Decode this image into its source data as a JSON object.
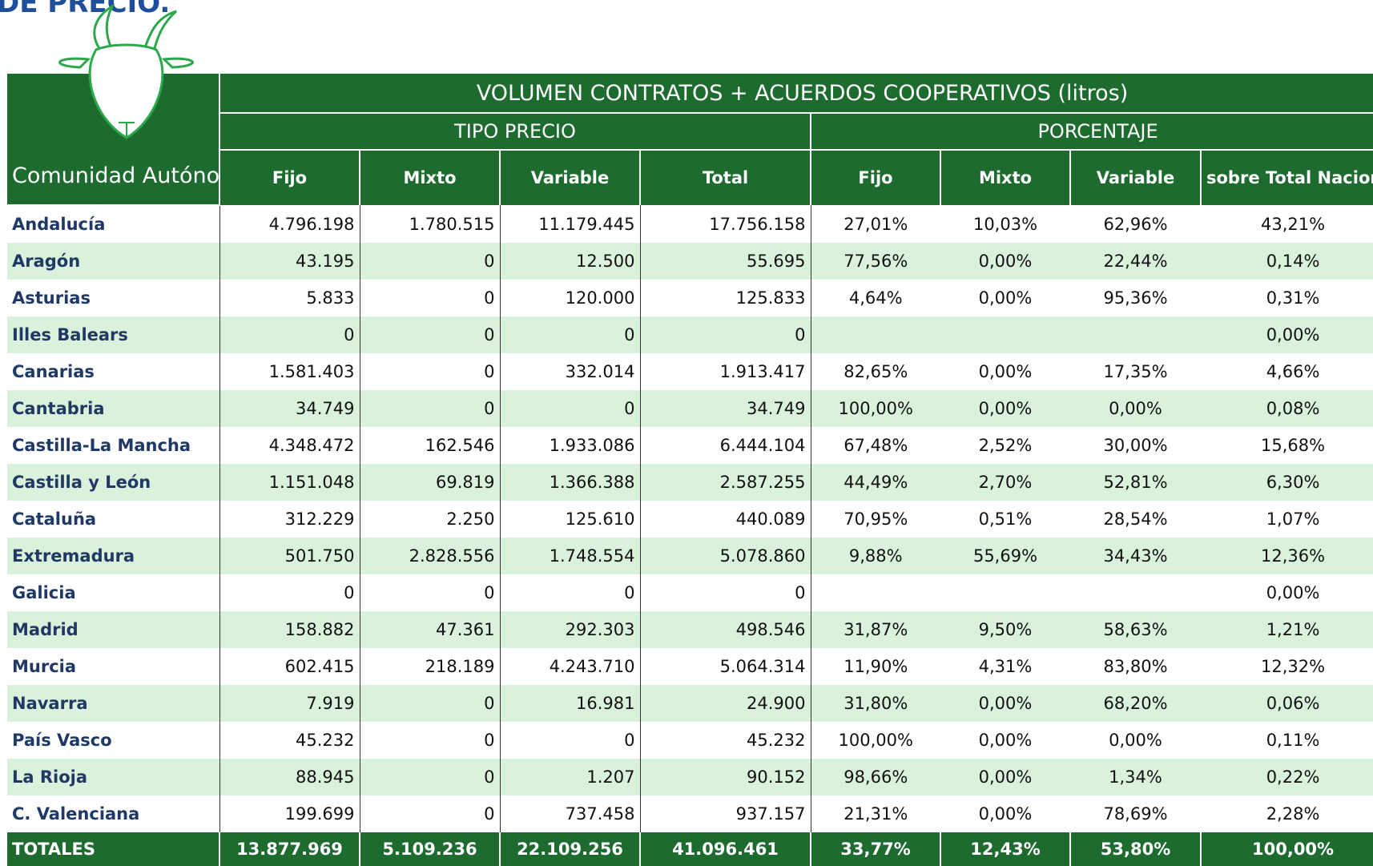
{
  "header": {
    "title_fragment": "DE PRECIO."
  },
  "table": {
    "group_title": "VOLUMEN CONTRATOS + ACUERDOS COOPERATIVOS (litros)",
    "subgroups": [
      "TIPO PRECIO",
      "PORCENTAJE"
    ],
    "columns": [
      "Comunidad Autónoma",
      "Fijo",
      "Mixto",
      "Variable",
      "Total",
      "Fijo",
      "Mixto",
      "Variable",
      "sobre Total Nacion"
    ],
    "rows": [
      [
        "Andalucía",
        "4.796.198",
        "1.780.515",
        "11.179.445",
        "17.756.158",
        "27,01%",
        "10,03%",
        "62,96%",
        "43,21%"
      ],
      [
        "Aragón",
        "43.195",
        "0",
        "12.500",
        "55.695",
        "77,56%",
        "0,00%",
        "22,44%",
        "0,14%"
      ],
      [
        "Asturias",
        "5.833",
        "0",
        "120.000",
        "125.833",
        "4,64%",
        "0,00%",
        "95,36%",
        "0,31%"
      ],
      [
        "Illes Balears",
        "0",
        "0",
        "0",
        "0",
        null,
        null,
        null,
        "0,00%"
      ],
      [
        "Canarias",
        "1.581.403",
        "0",
        "332.014",
        "1.913.417",
        "82,65%",
        "0,00%",
        "17,35%",
        "4,66%"
      ],
      [
        "Cantabria",
        "34.749",
        "0",
        "0",
        "34.749",
        "100,00%",
        "0,00%",
        "0,00%",
        "0,08%"
      ],
      [
        "Castilla-La Mancha",
        "4.348.472",
        "162.546",
        "1.933.086",
        "6.444.104",
        "67,48%",
        "2,52%",
        "30,00%",
        "15,68%"
      ],
      [
        "Castilla y León",
        "1.151.048",
        "69.819",
        "1.366.388",
        "2.587.255",
        "44,49%",
        "2,70%",
        "52,81%",
        "6,30%"
      ],
      [
        "Cataluña",
        "312.229",
        "2.250",
        "125.610",
        "440.089",
        "70,95%",
        "0,51%",
        "28,54%",
        "1,07%"
      ],
      [
        "Extremadura",
        "501.750",
        "2.828.556",
        "1.748.554",
        "5.078.860",
        "9,88%",
        "55,69%",
        "34,43%",
        "12,36%"
      ],
      [
        "Galicia",
        "0",
        "0",
        "0",
        "0",
        null,
        null,
        null,
        "0,00%"
      ],
      [
        "Madrid",
        "158.882",
        "47.361",
        "292.303",
        "498.546",
        "31,87%",
        "9,50%",
        "58,63%",
        "1,21%"
      ],
      [
        "Murcia",
        "602.415",
        "218.189",
        "4.243.710",
        "5.064.314",
        "11,90%",
        "4,31%",
        "83,80%",
        "12,32%"
      ],
      [
        "Navarra",
        "7.919",
        "0",
        "16.981",
        "24.900",
        "31,80%",
        "0,00%",
        "68,20%",
        "0,06%"
      ],
      [
        "País Vasco",
        "45.232",
        "0",
        "0",
        "45.232",
        "100,00%",
        "0,00%",
        "0,00%",
        "0,11%"
      ],
      [
        "La Rioja",
        "88.945",
        "0",
        "1.207",
        "90.152",
        "98,66%",
        "0,00%",
        "1,34%",
        "0,22%"
      ],
      [
        "C. Valenciana",
        "199.699",
        "0",
        "737.458",
        "937.157",
        "21,31%",
        "0,00%",
        "78,69%",
        "2,28%"
      ]
    ],
    "totals": [
      "TOTALES",
      "13.877.969",
      "5.109.236",
      "22.109.256",
      "41.096.461",
      "33,77%",
      "12,43%",
      "53,80%",
      "100,00%"
    ]
  }
}
